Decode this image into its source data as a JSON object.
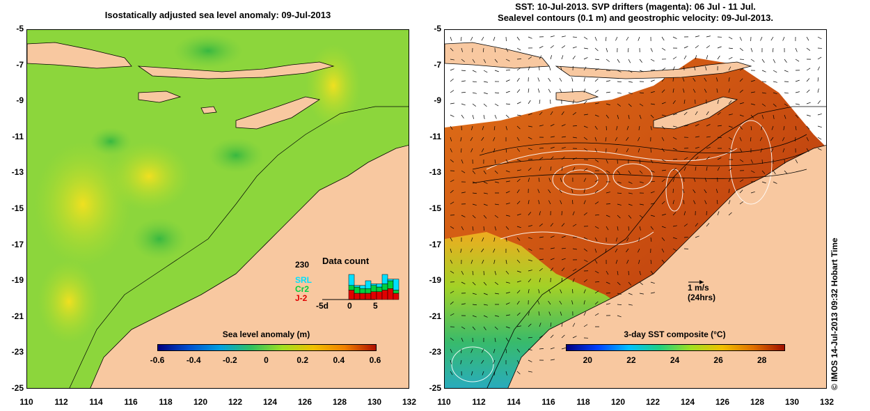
{
  "left_panel": {
    "title": "Isostatically adjusted sea level anomaly: 09-Jul-2013",
    "colorbar_title": "Sea level anomaly (m)",
    "colorbar_ticks": [
      "-0.6",
      "-0.4",
      "-0.2",
      "0",
      "0.2",
      "0.4",
      "0.6"
    ],
    "colorbar_colors": [
      "#00007f",
      "#0050d0",
      "#00a0e0",
      "#30c060",
      "#a0e020",
      "#f0c000",
      "#f08000",
      "#b01000"
    ],
    "data_count": {
      "title": "Data count",
      "max_label": "230",
      "series": [
        {
          "name": "SRL",
          "color": "#00e0ff"
        },
        {
          "name": "Cr2",
          "color": "#00d040"
        },
        {
          "name": "J-2",
          "color": "#e00000"
        }
      ],
      "x_labels": [
        "-5d",
        "0",
        "5"
      ],
      "bars": [
        {
          "srl": 0.35,
          "cr2": 0.15,
          "j2": 0.3
        },
        {
          "srl": 0.05,
          "cr2": 0.2,
          "j2": 0.2
        },
        {
          "srl": 0.1,
          "cr2": 0.15,
          "j2": 0.2
        },
        {
          "srl": 0.25,
          "cr2": 0.15,
          "j2": 0.2
        },
        {
          "srl": 0.05,
          "cr2": 0.2,
          "j2": 0.25
        },
        {
          "srl": 0.1,
          "cr2": 0.15,
          "j2": 0.25
        },
        {
          "srl": 0.3,
          "cr2": 0.2,
          "j2": 0.3
        },
        {
          "srl": 0.05,
          "cr2": 0.25,
          "j2": 0.35
        },
        {
          "srl": 0.35,
          "cr2": 0.1,
          "j2": 0.2
        }
      ]
    }
  },
  "right_panel": {
    "title_line1": "SST: 10-Jul-2013. SVP drifters (magenta): 06 Jul - 11 Jul.",
    "title_line2": "Sealevel contours (0.1 m) and geostrophic velocity: 09-Jul-2013.",
    "colorbar_title": "3-day SST composite (°C)",
    "colorbar_ticks": [
      "20",
      "22",
      "24",
      "26",
      "28"
    ],
    "colorbar_colors": [
      "#000080",
      "#0040ff",
      "#00c0ff",
      "#20d080",
      "#a0e020",
      "#f0c000",
      "#e07000",
      "#a01000"
    ],
    "velocity_scale": "1 m/s",
    "velocity_scale_sub": "(24hrs)"
  },
  "axes": {
    "y_ticks": [
      "-5",
      "-7",
      "-9",
      "-11",
      "-13",
      "-15",
      "-17",
      "-19",
      "-21",
      "-23",
      "-25"
    ],
    "x_ticks": [
      "110",
      "112",
      "114",
      "116",
      "118",
      "120",
      "122",
      "124",
      "126",
      "128",
      "130",
      "132"
    ]
  },
  "credit": "© IMOS 14-Jul-2013 09:32 Hobart Time",
  "colors": {
    "land": "#f8c8a0",
    "ocean_green": "#88d640",
    "ocean_yellow": "#d8e820",
    "sst_red": "#c04010",
    "sst_orange": "#e07020"
  }
}
